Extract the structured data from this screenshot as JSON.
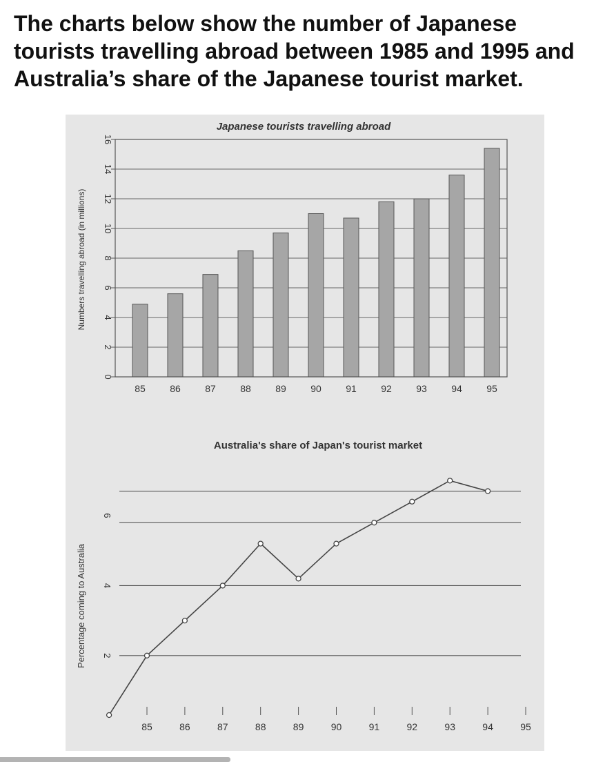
{
  "heading": {
    "line1": "The charts below show the number of Japanese",
    "line2": "tourists travelling abroad between 1985 and 1995 and",
    "line3": "Australia’s share of the Japanese tourist market."
  },
  "chart_data": [
    {
      "type": "bar",
      "title": "Japanese tourists travelling abroad",
      "xlabel": "",
      "ylabel": "Numbers travelling abroad (in millions)",
      "categories": [
        "85",
        "86",
        "87",
        "88",
        "89",
        "90",
        "91",
        "92",
        "93",
        "94",
        "95"
      ],
      "values": [
        4.9,
        5.6,
        6.9,
        8.5,
        9.7,
        11.0,
        10.7,
        11.8,
        12.0,
        13.6,
        15.4
      ],
      "ylim": [
        0,
        16
      ],
      "yticks": [
        0,
        2,
        4,
        6,
        8,
        10,
        12,
        14,
        16
      ],
      "bar_color": "#a6a6a6",
      "grid": true
    },
    {
      "type": "line",
      "title": "Australia's share of Japan's tourist market",
      "xlabel": "",
      "ylabel": "Percentage coming to Australia",
      "x": [
        "85",
        "86",
        "87",
        "88",
        "89",
        "90",
        "91",
        "92",
        "93",
        "94",
        "95"
      ],
      "x_values": [
        85,
        86,
        87,
        88,
        89,
        90,
        91,
        92,
        93,
        94,
        95
      ],
      "points_x": [
        84.0,
        85.0,
        86.0,
        87.0,
        88.0,
        89.0,
        90.0,
        91.0,
        92.0,
        93.0,
        94.0
      ],
      "values": [
        0.3,
        2.0,
        3.0,
        4.0,
        5.2,
        4.2,
        5.2,
        5.8,
        6.4,
        7.0,
        6.7
      ],
      "ylim": [
        0.3,
        7.5
      ],
      "yticks": [
        2,
        4,
        6
      ],
      "gridlines_at": [
        2.0,
        4.0,
        5.8,
        6.7
      ],
      "grid": true,
      "line_color": "#444444"
    }
  ]
}
